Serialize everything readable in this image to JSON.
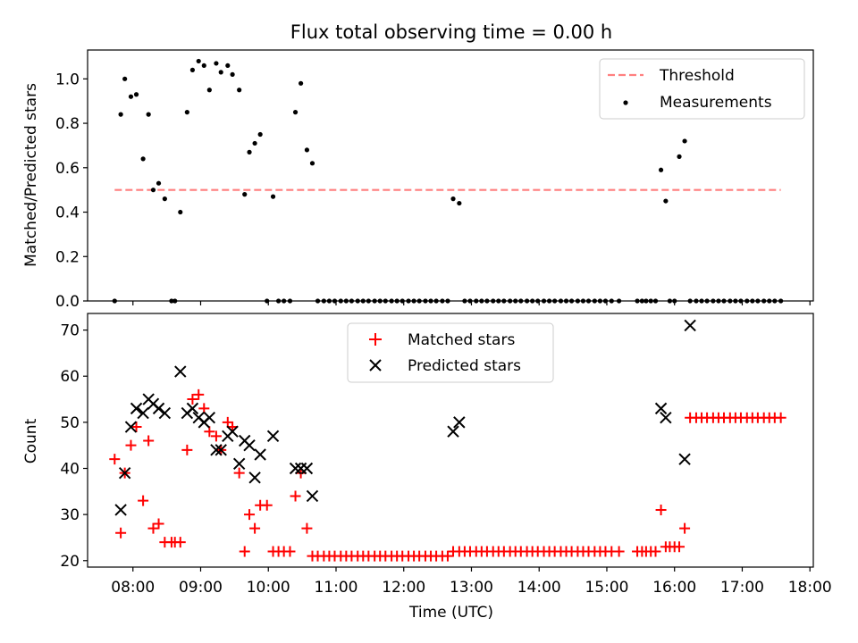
{
  "chart_data": [
    {
      "type": "scatter",
      "title": "Flux total observing time = 0.00 h",
      "xlabel": "",
      "ylabel": "Matched/Predicted stars",
      "xlim": [
        7.33,
        18.05
      ],
      "ylim": [
        0.0,
        1.13
      ],
      "yticks": [
        0.0,
        0.2,
        0.4,
        0.6,
        0.8,
        1.0
      ],
      "ytick_labels": [
        "0.0",
        "0.2",
        "0.4",
        "0.6",
        "0.8",
        "1.0"
      ],
      "xticks": [
        8,
        9,
        10,
        11,
        12,
        13,
        14,
        15,
        16,
        17,
        18
      ],
      "legend_position": "top-right",
      "threshold": {
        "name": "Threshold",
        "value": 0.5,
        "x_range": [
          7.73,
          17.57
        ],
        "color": "#ff7f7f"
      },
      "series": [
        {
          "name": "Measurements",
          "color": "#000000",
          "x": [
            7.73,
            7.82,
            7.88,
            7.97,
            8.05,
            8.15,
            8.23,
            8.3,
            8.38,
            8.47,
            8.57,
            8.62,
            8.7,
            8.8,
            8.88,
            8.97,
            9.05,
            9.13,
            9.23,
            9.3,
            9.4,
            9.47,
            9.57,
            9.65,
            9.72,
            9.8,
            9.88,
            9.98,
            10.07,
            10.15,
            10.23,
            10.32,
            10.4,
            10.48,
            10.57,
            10.65,
            10.73,
            10.82,
            10.9,
            10.98,
            11.07,
            11.15,
            11.23,
            11.32,
            11.4,
            11.48,
            11.57,
            11.65,
            11.73,
            11.82,
            11.9,
            11.98,
            12.07,
            12.15,
            12.23,
            12.32,
            12.4,
            12.48,
            12.57,
            12.65,
            12.73,
            12.82,
            12.9,
            12.98,
            13.07,
            13.15,
            13.23,
            13.32,
            13.4,
            13.48,
            13.57,
            13.65,
            13.73,
            13.82,
            13.9,
            13.98,
            14.07,
            14.15,
            14.23,
            14.32,
            14.4,
            14.48,
            14.57,
            14.65,
            14.73,
            14.82,
            14.9,
            14.98,
            15.07,
            15.18,
            15.45,
            15.52,
            15.58,
            15.65,
            15.72,
            15.8,
            15.87,
            15.93,
            16.0,
            16.07,
            16.15,
            16.23,
            16.32,
            16.4,
            16.48,
            16.57,
            16.65,
            16.73,
            16.82,
            16.9,
            16.98,
            17.07,
            17.15,
            17.23,
            17.32,
            17.4,
            17.48,
            17.57
          ],
          "y": [
            0.0,
            0.84,
            1.0,
            0.92,
            0.93,
            0.64,
            0.84,
            0.5,
            0.53,
            0.46,
            0.0,
            0.0,
            0.4,
            0.85,
            1.04,
            1.08,
            1.06,
            0.95,
            1.07,
            1.03,
            1.06,
            1.02,
            0.95,
            0.48,
            0.67,
            0.71,
            0.75,
            0.0,
            0.47,
            0.0,
            0.0,
            0.0,
            0.85,
            0.98,
            0.68,
            0.62,
            0.0,
            0.0,
            0.0,
            0.0,
            0.0,
            0.0,
            0.0,
            0.0,
            0.0,
            0.0,
            0.0,
            0.0,
            0.0,
            0.0,
            0.0,
            0.0,
            0.0,
            0.0,
            0.0,
            0.0,
            0.0,
            0.0,
            0.0,
            0.0,
            0.46,
            0.44,
            0.0,
            0.0,
            0.0,
            0.0,
            0.0,
            0.0,
            0.0,
            0.0,
            0.0,
            0.0,
            0.0,
            0.0,
            0.0,
            0.0,
            0.0,
            0.0,
            0.0,
            0.0,
            0.0,
            0.0,
            0.0,
            0.0,
            0.0,
            0.0,
            0.0,
            0.0,
            0.0,
            0.0,
            0.0,
            0.0,
            0.0,
            0.0,
            0.0,
            0.59,
            0.45,
            0.0,
            0.0,
            0.65,
            0.72,
            0.0,
            0.0,
            0.0,
            0.0,
            0.0,
            0.0,
            0.0,
            0.0,
            0.0,
            0.0,
            0.0,
            0.0,
            0.0,
            0.0,
            0.0,
            0.0,
            0.0
          ]
        }
      ]
    },
    {
      "type": "scatter",
      "title": "",
      "xlabel": "Time (UTC)",
      "ylabel": "Count",
      "xlim": [
        7.33,
        18.05
      ],
      "ylim": [
        18.6,
        73.6
      ],
      "yticks": [
        20,
        30,
        40,
        50,
        60,
        70
      ],
      "ytick_labels": [
        "20",
        "30",
        "40",
        "50",
        "60",
        "70"
      ],
      "xticks": [
        8,
        9,
        10,
        11,
        12,
        13,
        14,
        15,
        16,
        17,
        18
      ],
      "xtick_labels": [
        "08:00",
        "09:00",
        "10:00",
        "11:00",
        "12:00",
        "13:00",
        "14:00",
        "15:00",
        "16:00",
        "17:00",
        "18:00"
      ],
      "legend_position": "top-center",
      "series": [
        {
          "name": "Matched stars",
          "color": "#ff0000",
          "marker": "+",
          "x": [
            7.73,
            7.82,
            7.88,
            7.97,
            8.05,
            8.15,
            8.23,
            8.3,
            8.38,
            8.47,
            8.57,
            8.62,
            8.7,
            8.8,
            8.88,
            8.97,
            9.05,
            9.13,
            9.23,
            9.3,
            9.4,
            9.47,
            9.57,
            9.65,
            9.72,
            9.8,
            9.88,
            9.98,
            10.07,
            10.15,
            10.23,
            10.32,
            10.4,
            10.48,
            10.57,
            10.65,
            10.73,
            10.82,
            10.9,
            10.98,
            11.07,
            11.15,
            11.23,
            11.32,
            11.4,
            11.48,
            11.57,
            11.65,
            11.73,
            11.82,
            11.9,
            11.98,
            12.07,
            12.15,
            12.23,
            12.32,
            12.4,
            12.48,
            12.57,
            12.65,
            12.73,
            12.82,
            12.9,
            12.98,
            13.07,
            13.15,
            13.23,
            13.32,
            13.4,
            13.48,
            13.57,
            13.65,
            13.73,
            13.82,
            13.9,
            13.98,
            14.07,
            14.15,
            14.23,
            14.32,
            14.4,
            14.48,
            14.57,
            14.65,
            14.73,
            14.82,
            14.9,
            14.98,
            15.07,
            15.18,
            15.45,
            15.52,
            15.58,
            15.65,
            15.72,
            15.8,
            15.87,
            15.93,
            16.0,
            16.07,
            16.15,
            16.23,
            16.32,
            16.4,
            16.48,
            16.57,
            16.65,
            16.73,
            16.82,
            16.9,
            16.98,
            17.07,
            17.15,
            17.23,
            17.32,
            17.4,
            17.48,
            17.57
          ],
          "y": [
            42,
            26,
            39,
            45,
            49,
            33,
            46,
            27,
            28,
            24,
            24,
            24,
            24,
            44,
            55,
            56,
            53,
            48,
            47,
            44,
            50,
            49,
            39,
            22,
            30,
            27,
            32,
            32,
            22,
            22,
            22,
            22,
            34,
            39,
            27,
            21,
            21,
            21,
            21,
            21,
            21,
            21,
            21,
            21,
            21,
            21,
            21,
            21,
            21,
            21,
            21,
            21,
            21,
            21,
            21,
            21,
            21,
            21,
            21,
            21,
            22,
            22,
            22,
            22,
            22,
            22,
            22,
            22,
            22,
            22,
            22,
            22,
            22,
            22,
            22,
            22,
            22,
            22,
            22,
            22,
            22,
            22,
            22,
            22,
            22,
            22,
            22,
            22,
            22,
            22,
            22,
            22,
            22,
            22,
            22,
            31,
            23,
            23,
            23,
            23,
            27,
            51,
            51,
            51,
            51,
            51,
            51,
            51,
            51,
            51,
            51,
            51,
            51,
            51,
            51,
            51,
            51,
            51
          ]
        },
        {
          "name": "Predicted stars",
          "color": "#000000",
          "marker": "x",
          "x": [
            7.82,
            7.88,
            7.97,
            8.05,
            8.15,
            8.23,
            8.3,
            8.38,
            8.47,
            8.7,
            8.8,
            8.88,
            8.97,
            9.05,
            9.13,
            9.23,
            9.3,
            9.4,
            9.47,
            9.57,
            9.65,
            9.72,
            9.8,
            9.88,
            10.07,
            10.4,
            10.48,
            10.57,
            10.65,
            12.73,
            12.82,
            15.8,
            15.87,
            16.15,
            16.23
          ],
          "y": [
            31,
            39,
            49,
            53,
            52,
            55,
            54,
            53,
            52,
            61,
            52,
            53,
            51,
            50,
            51,
            44,
            44,
            47,
            48,
            41,
            46,
            45,
            38,
            43,
            47,
            40,
            40,
            40,
            34,
            48,
            50,
            53,
            51,
            42,
            71
          ]
        }
      ]
    }
  ],
  "legends": {
    "top": {
      "threshold_label": "Threshold",
      "measurements_label": "Measurements"
    },
    "bottom": {
      "matched_label": "Matched stars",
      "predicted_label": "Predicted stars"
    }
  }
}
